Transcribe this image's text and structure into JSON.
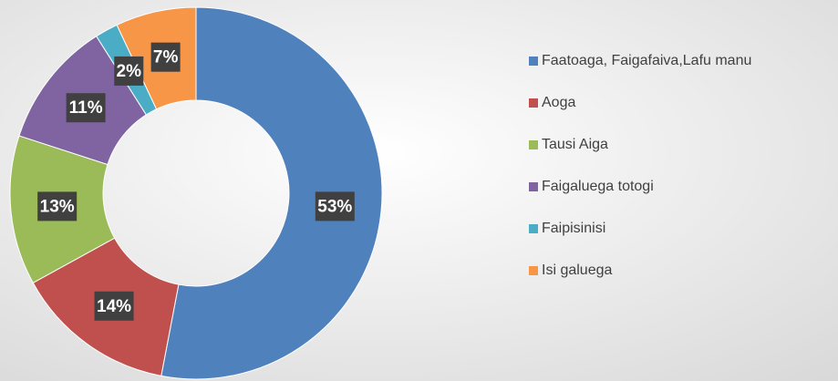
{
  "chart_data": {
    "type": "pie",
    "categories": [
      "Faatoaga, Faigafaiva,Lafu manu",
      "Aoga",
      "Tausi Aiga",
      "Faigaluega totogi",
      "Faipisinisi",
      "Isi galuega"
    ],
    "values": [
      53,
      14,
      13,
      11,
      2,
      7
    ],
    "value_labels": [
      "53%",
      "14%",
      "13%",
      "11%",
      "2%",
      "7%"
    ],
    "colors": [
      "#4f81bd",
      "#c0504d",
      "#9bbb59",
      "#8064a2",
      "#4bacc6",
      "#f79646"
    ],
    "legend": "right"
  }
}
